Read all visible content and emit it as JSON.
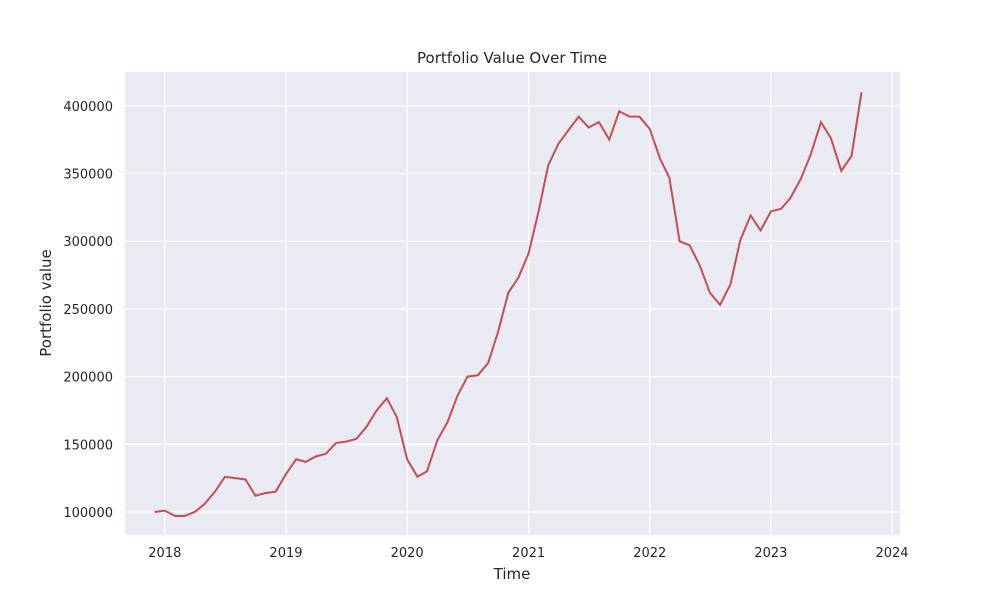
{
  "chart_data": {
    "type": "line",
    "title": "Portfolio Value Over Time",
    "xlabel": "Time",
    "ylabel": "Portfolio value",
    "x_ticks": [
      "2018",
      "2019",
      "2020",
      "2021",
      "2022",
      "2023",
      "2024"
    ],
    "y_ticks": [
      "100000",
      "150000",
      "200000",
      "250000",
      "300000",
      "350000",
      "400000"
    ],
    "xlim": [
      "2017-09-03",
      "2024-01-25"
    ],
    "ylim": [
      83000,
      425000
    ],
    "grid": true,
    "legend": "none",
    "colors": {
      "series": "#c44e52",
      "plot_background": "#eaeaf2",
      "grid": "#ffffff",
      "text": "#262626"
    },
    "series": [
      {
        "x": [
          "2017-12-01",
          "2018-01-01",
          "2018-02-01",
          "2018-03-01",
          "2018-04-01",
          "2018-05-01",
          "2018-06-01",
          "2018-07-01",
          "2018-08-01",
          "2018-09-01",
          "2018-10-01",
          "2018-11-01",
          "2018-12-01",
          "2019-01-01",
          "2019-02-01",
          "2019-03-01",
          "2019-04-01",
          "2019-05-01",
          "2019-06-01",
          "2019-07-01",
          "2019-08-01",
          "2019-09-01",
          "2019-10-01",
          "2019-11-01",
          "2019-12-01",
          "2020-01-01",
          "2020-02-01",
          "2020-03-01",
          "2020-04-01",
          "2020-05-01",
          "2020-06-01",
          "2020-07-01",
          "2020-08-01",
          "2020-09-01",
          "2020-10-01",
          "2020-11-01",
          "2020-12-01",
          "2021-01-01",
          "2021-02-01",
          "2021-03-01",
          "2021-04-01",
          "2021-05-01",
          "2021-06-01",
          "2021-07-01",
          "2021-08-01",
          "2021-09-01",
          "2021-10-01",
          "2021-11-01",
          "2021-12-01",
          "2022-01-01",
          "2022-02-01",
          "2022-03-01",
          "2022-04-01",
          "2022-05-01",
          "2022-06-01",
          "2022-07-01",
          "2022-08-01",
          "2022-09-01",
          "2022-10-01",
          "2022-11-01",
          "2022-12-01",
          "2023-01-01",
          "2023-02-01",
          "2023-03-01",
          "2023-04-01",
          "2023-05-01",
          "2023-06-01",
          "2023-07-01",
          "2023-08-01",
          "2023-09-01",
          "2023-10-01"
        ],
        "values": [
          100000,
          101000,
          97000,
          97000,
          100000,
          106000,
          115000,
          126000,
          125000,
          124000,
          112000,
          114000,
          115000,
          128000,
          139000,
          137000,
          141000,
          143000,
          151000,
          152000,
          154000,
          163000,
          175000,
          184000,
          170000,
          139000,
          126000,
          130000,
          153000,
          166000,
          186000,
          200000,
          201000,
          210000,
          233000,
          262000,
          273000,
          291000,
          323000,
          356000,
          372000,
          382000,
          392000,
          384000,
          388000,
          375000,
          396000,
          392000,
          392000,
          383000,
          361000,
          347000,
          300000,
          297000,
          282000,
          262000,
          253000,
          268000,
          301000,
          319000,
          308000,
          322000,
          324000,
          332000,
          346000,
          364000,
          388000,
          376000,
          352000,
          363000,
          410000
        ]
      }
    ]
  }
}
